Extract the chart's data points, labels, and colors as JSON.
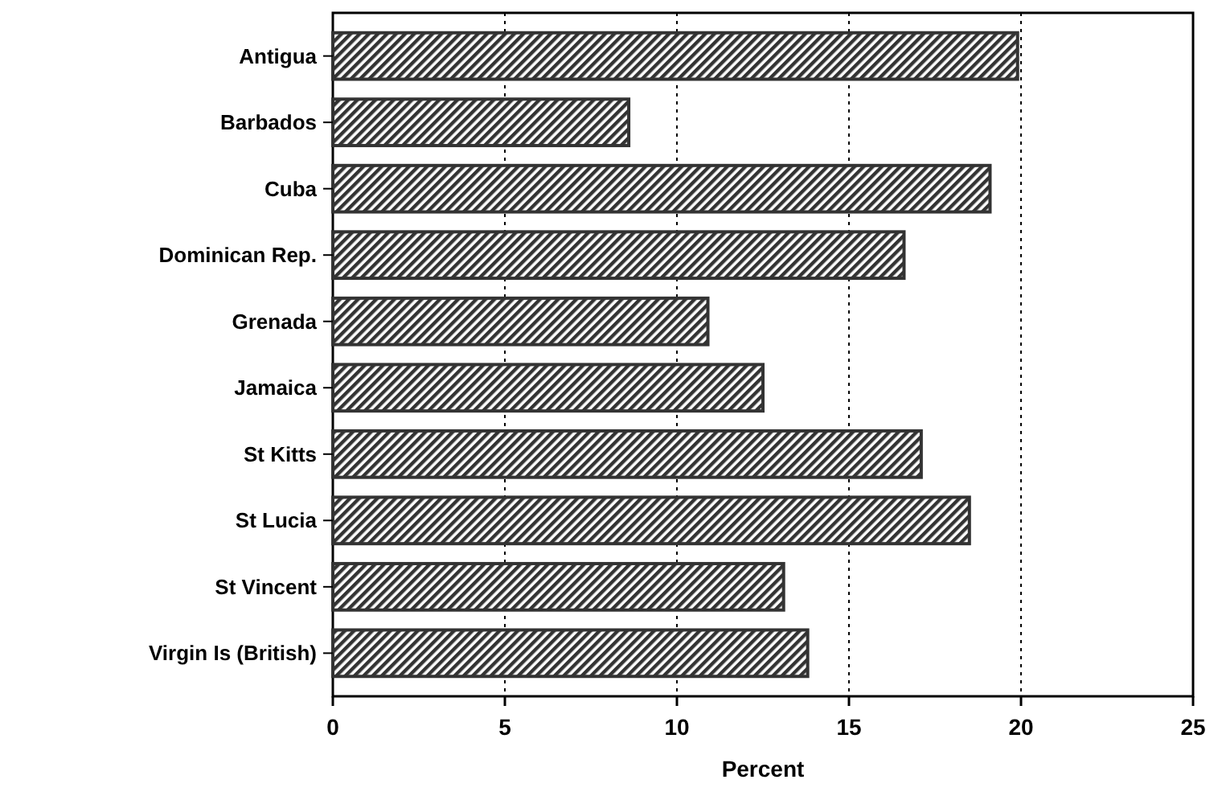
{
  "chart_data": {
    "type": "bar",
    "orientation": "horizontal",
    "xlabel": "Percent",
    "categories": [
      "Antigua",
      "Barbados",
      "Cuba",
      "Dominican Rep.",
      "Grenada",
      "Jamaica",
      "St Kitts",
      "St Lucia",
      "St Vincent",
      "Virgin Is (British)"
    ],
    "values": [
      19.9,
      8.6,
      19.1,
      16.6,
      10.9,
      12.5,
      17.1,
      18.5,
      13.1,
      13.8
    ],
    "color": "#333333",
    "xlim": [
      0,
      25
    ],
    "xticks": [
      0,
      5,
      10,
      15,
      20,
      25
    ],
    "grid": "x"
  }
}
